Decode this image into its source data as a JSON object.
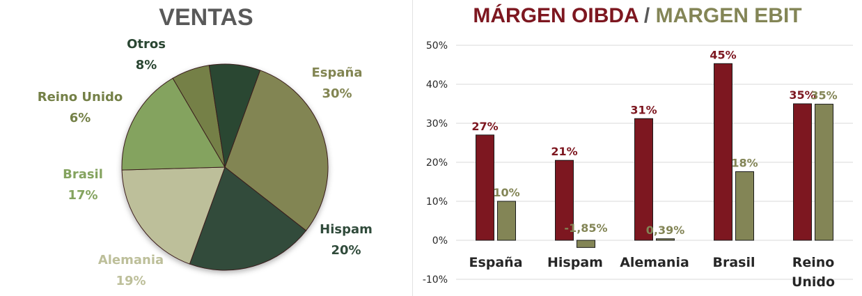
{
  "pie": {
    "title": "VENTAS",
    "colors": {
      "title": "#595959"
    },
    "chart_data": {
      "type": "pie",
      "title": "VENTAS",
      "slices": [
        {
          "label": "España",
          "value": 30,
          "value_label": "30%",
          "color": "#828552",
          "label_color": "#828552"
        },
        {
          "label": "Hispam",
          "value": 20,
          "value_label": "20%",
          "color": "#304b3b",
          "label_color": "#304b3b"
        },
        {
          "label": "Alemania",
          "value": 19,
          "value_label": "19%",
          "color": "#bdbf9a",
          "label_color": "#bdbf9a"
        },
        {
          "label": "Brasil",
          "value": 17,
          "value_label": "17%",
          "color": "#84a35f",
          "label_color": "#84a35f"
        },
        {
          "label": "Reino Unido",
          "value": 6,
          "value_label": "6%",
          "color": "#748047",
          "label_color": "#748047"
        },
        {
          "label": "Otros",
          "value": 8,
          "value_label": "8%",
          "color": "#2a4632",
          "label_color": "#2a4632"
        }
      ]
    }
  },
  "bars": {
    "title_part1": "MÁRGEN OIBDA",
    "title_sep": " / ",
    "title_part2": "MARGEN EBIT",
    "colors": {
      "oibda": "#7d1720",
      "ebit": "#838556",
      "sep": "#595959",
      "grid": "#d9d9d9",
      "axis_text": "#262626"
    },
    "chart_data": {
      "type": "bar",
      "categories": [
        [
          "España"
        ],
        [
          "Hispam"
        ],
        [
          "Alemania"
        ],
        [
          "Brasil"
        ],
        [
          "Reino",
          "Unido"
        ]
      ],
      "series": [
        {
          "name": "MÁRGEN OIBDA",
          "values": [
            27,
            20.5,
            31.2,
            45.3,
            35
          ],
          "labels": [
            "27%",
            "21%",
            "31%",
            "45%",
            "35%"
          ]
        },
        {
          "name": "MARGEN EBIT",
          "values": [
            10,
            -1.85,
            0.39,
            17.6,
            34.9
          ],
          "labels": [
            "10%",
            "-1,85%",
            "0,39%",
            "18%",
            "35%"
          ]
        }
      ],
      "ylim": [
        -10,
        50
      ],
      "yticks": [
        -10,
        0,
        10,
        20,
        30,
        40,
        50
      ],
      "ytick_labels": [
        "-10%",
        "0%",
        "10%",
        "20%",
        "30%",
        "40%",
        "50%"
      ],
      "grid": true
    }
  }
}
